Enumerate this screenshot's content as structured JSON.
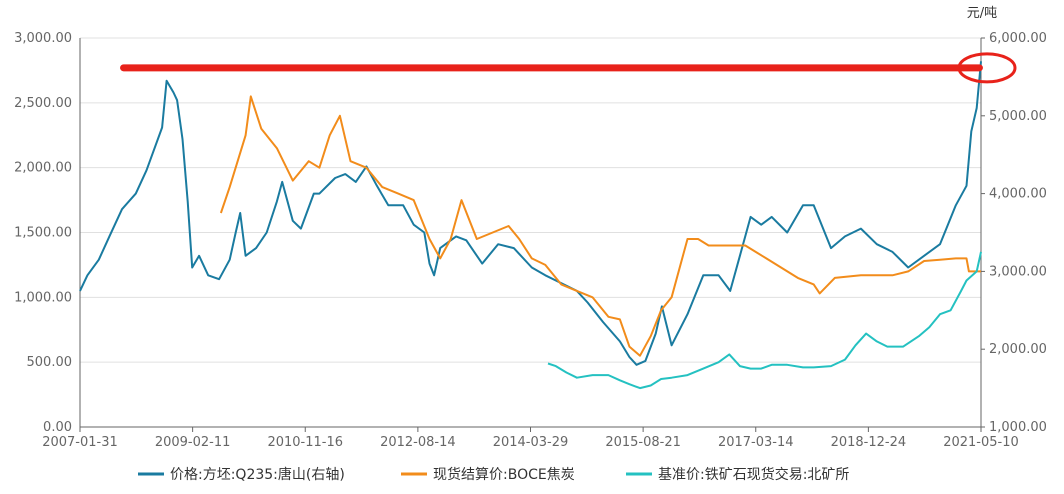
{
  "chart_data": {
    "type": "line",
    "title": "",
    "xlabel": "",
    "y_right_unit": "元/吨",
    "x_tick_labels": [
      "2007-01-31",
      "2009-02-11",
      "2010-11-16",
      "2012-08-14",
      "2014-03-29",
      "2015-08-21",
      "2017-03-14",
      "2018-12-24",
      "2021-05-10"
    ],
    "x_range": [
      "2007-01-31",
      "2021-05-10"
    ],
    "y_left": {
      "min": 0,
      "max": 3000,
      "step": 500,
      "tick_labels": [
        "0.00",
        "500.00",
        "1,000.00",
        "1,500.00",
        "2,000.00",
        "2,500.00",
        "3,000.00"
      ]
    },
    "y_right": {
      "min": 1000,
      "max": 6000,
      "step": 1000,
      "tick_labels": [
        "1,000.00",
        "2,000.00",
        "3,000.00",
        "4,000.00",
        "5,000.00",
        "6,000.00"
      ]
    },
    "grid": true,
    "legend_position": "bottom",
    "series": [
      {
        "name": "价格:方坯:Q235:唐山(右轴)",
        "axis": "right",
        "color": "#1a7ba0",
        "points": [
          [
            "2007-01-31",
            2750
          ],
          [
            "2007-03-15",
            2950
          ],
          [
            "2007-05-20",
            3150
          ],
          [
            "2007-07-20",
            3450
          ],
          [
            "2007-10-01",
            3800
          ],
          [
            "2007-12-20",
            4000
          ],
          [
            "2008-02-20",
            4300
          ],
          [
            "2008-05-20",
            4850
          ],
          [
            "2008-06-15",
            5450
          ],
          [
            "2008-07-25",
            5300
          ],
          [
            "2008-08-15",
            5200
          ],
          [
            "2008-09-15",
            4700
          ],
          [
            "2008-10-15",
            3900
          ],
          [
            "2008-11-10",
            3050
          ],
          [
            "2008-12-20",
            3200
          ],
          [
            "2009-02-11",
            2950
          ],
          [
            "2009-04-15",
            2900
          ],
          [
            "2009-06-15",
            3150
          ],
          [
            "2009-07-20",
            3500
          ],
          [
            "2009-08-15",
            3750
          ],
          [
            "2009-09-15",
            3200
          ],
          [
            "2009-11-15",
            3300
          ],
          [
            "2010-01-15",
            3500
          ],
          [
            "2010-03-15",
            3900
          ],
          [
            "2010-04-15",
            4150
          ],
          [
            "2010-06-15",
            3650
          ],
          [
            "2010-08-01",
            3550
          ],
          [
            "2010-10-15",
            4000
          ],
          [
            "2010-11-16",
            4000
          ],
          [
            "2011-02-15",
            4200
          ],
          [
            "2011-04-15",
            4250
          ],
          [
            "2011-06-15",
            4150
          ],
          [
            "2011-08-15",
            4350
          ],
          [
            "2011-10-15",
            4100
          ],
          [
            "2011-12-20",
            3850
          ],
          [
            "2012-03-15",
            3850
          ],
          [
            "2012-05-15",
            3600
          ],
          [
            "2012-07-15",
            3500
          ],
          [
            "2012-08-14",
            3100
          ],
          [
            "2012-09-10",
            2950
          ],
          [
            "2012-10-15",
            3300
          ],
          [
            "2013-01-15",
            3450
          ],
          [
            "2013-03-15",
            3400
          ],
          [
            "2013-06-15",
            3100
          ],
          [
            "2013-09-15",
            3350
          ],
          [
            "2013-12-15",
            3300
          ],
          [
            "2014-03-29",
            3050
          ],
          [
            "2014-06-15",
            2950
          ],
          [
            "2014-09-15",
            2850
          ],
          [
            "2014-12-15",
            2750
          ],
          [
            "2015-02-15",
            2600
          ],
          [
            "2015-05-15",
            2350
          ],
          [
            "2015-08-21",
            2100
          ],
          [
            "2015-10-15",
            1900
          ],
          [
            "2015-11-25",
            1800
          ],
          [
            "2016-01-15",
            1850
          ],
          [
            "2016-03-15",
            2200
          ],
          [
            "2016-04-20",
            2550
          ],
          [
            "2016-06-15",
            2050
          ],
          [
            "2016-09-15",
            2450
          ],
          [
            "2016-12-15",
            2950
          ],
          [
            "2017-03-14",
            2950
          ],
          [
            "2017-05-20",
            2750
          ],
          [
            "2017-07-15",
            3200
          ],
          [
            "2017-09-15",
            3700
          ],
          [
            "2017-11-15",
            3600
          ],
          [
            "2018-01-15",
            3700
          ],
          [
            "2018-04-15",
            3500
          ],
          [
            "2018-07-15",
            3850
          ],
          [
            "2018-09-15",
            3850
          ],
          [
            "2018-12-24",
            3300
          ],
          [
            "2019-03-15",
            3450
          ],
          [
            "2019-06-15",
            3550
          ],
          [
            "2019-09-15",
            3350
          ],
          [
            "2019-12-15",
            3250
          ],
          [
            "2020-03-15",
            3050
          ],
          [
            "2020-06-15",
            3200
          ],
          [
            "2020-09-15",
            3350
          ],
          [
            "2020-12-15",
            3850
          ],
          [
            "2021-02-15",
            4100
          ],
          [
            "2021-03-15",
            4800
          ],
          [
            "2021-04-15",
            5100
          ],
          [
            "2021-05-10",
            5700
          ]
        ]
      },
      {
        "name": "现货结算价:BOCE焦炭",
        "axis": "left",
        "color": "#f28c1b",
        "points": [
          [
            "2009-04-25",
            1650
          ],
          [
            "2009-06-15",
            1850
          ],
          [
            "2009-09-15",
            2250
          ],
          [
            "2009-10-15",
            2550
          ],
          [
            "2009-12-15",
            2300
          ],
          [
            "2010-03-15",
            2150
          ],
          [
            "2010-06-15",
            1900
          ],
          [
            "2010-09-15",
            2050
          ],
          [
            "2010-11-16",
            2000
          ],
          [
            "2011-01-15",
            2250
          ],
          [
            "2011-03-15",
            2400
          ],
          [
            "2011-05-15",
            2050
          ],
          [
            "2011-08-15",
            2000
          ],
          [
            "2011-11-15",
            1850
          ],
          [
            "2012-02-15",
            1800
          ],
          [
            "2012-05-15",
            1750
          ],
          [
            "2012-08-14",
            1450
          ],
          [
            "2012-10-15",
            1300
          ],
          [
            "2012-12-15",
            1450
          ],
          [
            "2013-02-15",
            1750
          ],
          [
            "2013-05-15",
            1450
          ],
          [
            "2013-08-15",
            1500
          ],
          [
            "2013-11-15",
            1550
          ],
          [
            "2014-01-15",
            1450
          ],
          [
            "2014-03-29",
            1300
          ],
          [
            "2014-06-15",
            1250
          ],
          [
            "2014-09-15",
            1100
          ],
          [
            "2014-12-15",
            1050
          ],
          [
            "2015-03-15",
            1000
          ],
          [
            "2015-06-15",
            850
          ],
          [
            "2015-08-21",
            830
          ],
          [
            "2015-10-15",
            620
          ],
          [
            "2015-12-15",
            550
          ],
          [
            "2016-02-15",
            700
          ],
          [
            "2016-04-15",
            900
          ],
          [
            "2016-06-15",
            1000
          ],
          [
            "2016-09-15",
            1450
          ],
          [
            "2016-11-15",
            1450
          ],
          [
            "2017-01-15",
            1400
          ],
          [
            "2017-03-14",
            1400
          ],
          [
            "2017-06-15",
            1400
          ],
          [
            "2017-08-15",
            1400
          ],
          [
            "2017-12-15",
            1300
          ],
          [
            "2018-06-15",
            1150
          ],
          [
            "2018-09-15",
            1100
          ],
          [
            "2018-10-20",
            1030
          ],
          [
            "2019-01-15",
            1150
          ],
          [
            "2019-06-15",
            1170
          ],
          [
            "2019-12-15",
            1170
          ],
          [
            "2020-03-15",
            1200
          ],
          [
            "2020-06-15",
            1280
          ],
          [
            "2020-09-15",
            1290
          ],
          [
            "2020-12-15",
            1300
          ],
          [
            "2021-02-15",
            1300
          ],
          [
            "2021-03-01",
            1200
          ],
          [
            "2021-05-10",
            1200
          ]
        ]
      },
      {
        "name": "基准价:铁矿石现货交易:北矿所",
        "axis": "left",
        "color": "#24c1c1",
        "points": [
          [
            "2014-07-01",
            490
          ],
          [
            "2014-08-15",
            470
          ],
          [
            "2014-10-15",
            420
          ],
          [
            "2014-12-15",
            380
          ],
          [
            "2015-03-15",
            400
          ],
          [
            "2015-06-15",
            400
          ],
          [
            "2015-08-21",
            360
          ],
          [
            "2015-10-15",
            330
          ],
          [
            "2015-12-15",
            300
          ],
          [
            "2016-02-15",
            320
          ],
          [
            "2016-04-15",
            370
          ],
          [
            "2016-06-15",
            380
          ],
          [
            "2016-09-15",
            400
          ],
          [
            "2016-12-15",
            450
          ],
          [
            "2017-03-14",
            500
          ],
          [
            "2017-05-15",
            560
          ],
          [
            "2017-07-15",
            470
          ],
          [
            "2017-09-15",
            450
          ],
          [
            "2017-11-15",
            450
          ],
          [
            "2018-01-15",
            480
          ],
          [
            "2018-04-15",
            480
          ],
          [
            "2018-07-15",
            460
          ],
          [
            "2018-09-15",
            460
          ],
          [
            "2018-12-24",
            470
          ],
          [
            "2019-03-15",
            520
          ],
          [
            "2019-05-15",
            630
          ],
          [
            "2019-07-15",
            720
          ],
          [
            "2019-09-15",
            660
          ],
          [
            "2019-11-15",
            620
          ],
          [
            "2020-02-15",
            620
          ],
          [
            "2020-05-15",
            700
          ],
          [
            "2020-07-15",
            770
          ],
          [
            "2020-09-15",
            870
          ],
          [
            "2020-11-15",
            900
          ],
          [
            "2021-01-15",
            1050
          ],
          [
            "2021-02-15",
            1130
          ],
          [
            "2021-04-15",
            1200
          ],
          [
            "2021-05-10",
            1350
          ]
        ]
      }
    ],
    "annotations": [
      {
        "type": "horizontal-line",
        "axis": "left",
        "value": 2770,
        "from": "2007-10-10",
        "to": "2021-05-01",
        "color": "#e8221a"
      },
      {
        "type": "ellipse",
        "axis": "left",
        "value": 2770,
        "at": "2021-05-10",
        "color": "#e8221a"
      }
    ]
  }
}
